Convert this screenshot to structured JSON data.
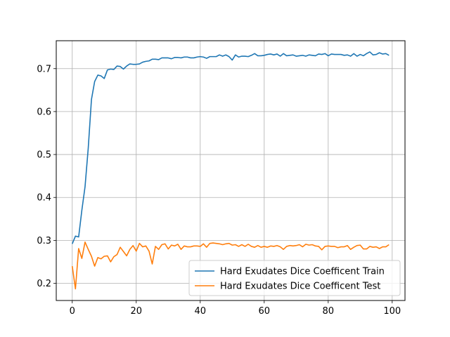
{
  "chart_data": {
    "type": "line",
    "title": "",
    "xlabel": "",
    "ylabel": "",
    "xlim": [
      -5,
      104
    ],
    "ylim": [
      0.16,
      0.765
    ],
    "x_ticks": [
      0,
      20,
      40,
      60,
      80,
      100
    ],
    "y_ticks": [
      0.2,
      0.3,
      0.4,
      0.5,
      0.6,
      0.7
    ],
    "grid": true,
    "legend_position": "lower-right",
    "series": [
      {
        "name": "Hard Exudates Dice Coefficent Train",
        "color": "#1f77b4",
        "x": [
          0,
          1,
          2,
          3,
          4,
          5,
          6,
          7,
          8,
          9,
          10,
          11,
          12,
          13,
          14,
          15,
          16,
          17,
          18,
          19,
          20,
          21,
          22,
          23,
          24,
          25,
          26,
          27,
          28,
          29,
          30,
          31,
          32,
          33,
          34,
          35,
          36,
          37,
          38,
          39,
          40,
          41,
          42,
          43,
          44,
          45,
          46,
          47,
          48,
          49,
          50,
          51,
          52,
          53,
          54,
          55,
          56,
          57,
          58,
          59,
          60,
          61,
          62,
          63,
          64,
          65,
          66,
          67,
          68,
          69,
          70,
          71,
          72,
          73,
          74,
          75,
          76,
          77,
          78,
          79,
          80,
          81,
          82,
          83,
          84,
          85,
          86,
          87,
          88,
          89,
          90,
          91,
          92,
          93,
          94,
          95,
          96,
          97,
          98,
          99
        ],
        "values": [
          0.292,
          0.31,
          0.308,
          0.37,
          0.425,
          0.515,
          0.628,
          0.67,
          0.685,
          0.683,
          0.677,
          0.697,
          0.699,
          0.698,
          0.706,
          0.705,
          0.699,
          0.706,
          0.711,
          0.71,
          0.71,
          0.711,
          0.715,
          0.717,
          0.718,
          0.722,
          0.722,
          0.721,
          0.725,
          0.725,
          0.725,
          0.723,
          0.726,
          0.726,
          0.725,
          0.727,
          0.727,
          0.725,
          0.725,
          0.727,
          0.728,
          0.727,
          0.724,
          0.728,
          0.728,
          0.728,
          0.732,
          0.729,
          0.732,
          0.728,
          0.72,
          0.732,
          0.727,
          0.729,
          0.729,
          0.728,
          0.731,
          0.735,
          0.73,
          0.73,
          0.731,
          0.733,
          0.734,
          0.732,
          0.734,
          0.729,
          0.735,
          0.73,
          0.731,
          0.732,
          0.729,
          0.73,
          0.731,
          0.729,
          0.732,
          0.731,
          0.73,
          0.734,
          0.733,
          0.735,
          0.73,
          0.734,
          0.733,
          0.733,
          0.733,
          0.731,
          0.732,
          0.729,
          0.735,
          0.729,
          0.733,
          0.73,
          0.735,
          0.739,
          0.732,
          0.733,
          0.737,
          0.734,
          0.735,
          0.731
        ]
      },
      {
        "name": "Hard Exudates Dice Coefficent Test",
        "color": "#ff7f0e",
        "x": [
          0,
          1,
          2,
          3,
          4,
          5,
          6,
          7,
          8,
          9,
          10,
          11,
          12,
          13,
          14,
          15,
          16,
          17,
          18,
          19,
          20,
          21,
          22,
          23,
          24,
          25,
          26,
          27,
          28,
          29,
          30,
          31,
          32,
          33,
          34,
          35,
          36,
          37,
          38,
          39,
          40,
          41,
          42,
          43,
          44,
          45,
          46,
          47,
          48,
          49,
          50,
          51,
          52,
          53,
          54,
          55,
          56,
          57,
          58,
          59,
          60,
          61,
          62,
          63,
          64,
          65,
          66,
          67,
          68,
          69,
          70,
          71,
          72,
          73,
          74,
          75,
          76,
          77,
          78,
          79,
          80,
          81,
          82,
          83,
          84,
          85,
          86,
          87,
          88,
          89,
          90,
          91,
          92,
          93,
          94,
          95,
          96,
          97,
          98,
          99
        ],
        "values": [
          0.24,
          0.187,
          0.281,
          0.258,
          0.296,
          0.279,
          0.263,
          0.24,
          0.26,
          0.257,
          0.263,
          0.264,
          0.25,
          0.262,
          0.267,
          0.284,
          0.274,
          0.264,
          0.279,
          0.288,
          0.275,
          0.293,
          0.285,
          0.287,
          0.275,
          0.245,
          0.286,
          0.279,
          0.29,
          0.292,
          0.28,
          0.289,
          0.287,
          0.291,
          0.279,
          0.287,
          0.285,
          0.285,
          0.287,
          0.287,
          0.286,
          0.292,
          0.284,
          0.293,
          0.294,
          0.293,
          0.292,
          0.29,
          0.292,
          0.293,
          0.289,
          0.29,
          0.286,
          0.29,
          0.286,
          0.291,
          0.286,
          0.284,
          0.288,
          0.284,
          0.286,
          0.284,
          0.287,
          0.286,
          0.288,
          0.285,
          0.279,
          0.286,
          0.288,
          0.287,
          0.288,
          0.29,
          0.285,
          0.291,
          0.289,
          0.29,
          0.287,
          0.286,
          0.278,
          0.286,
          0.287,
          0.286,
          0.286,
          0.283,
          0.285,
          0.285,
          0.288,
          0.279,
          0.284,
          0.288,
          0.289,
          0.28,
          0.28,
          0.286,
          0.284,
          0.285,
          0.281,
          0.285,
          0.285,
          0.29
        ]
      }
    ]
  }
}
